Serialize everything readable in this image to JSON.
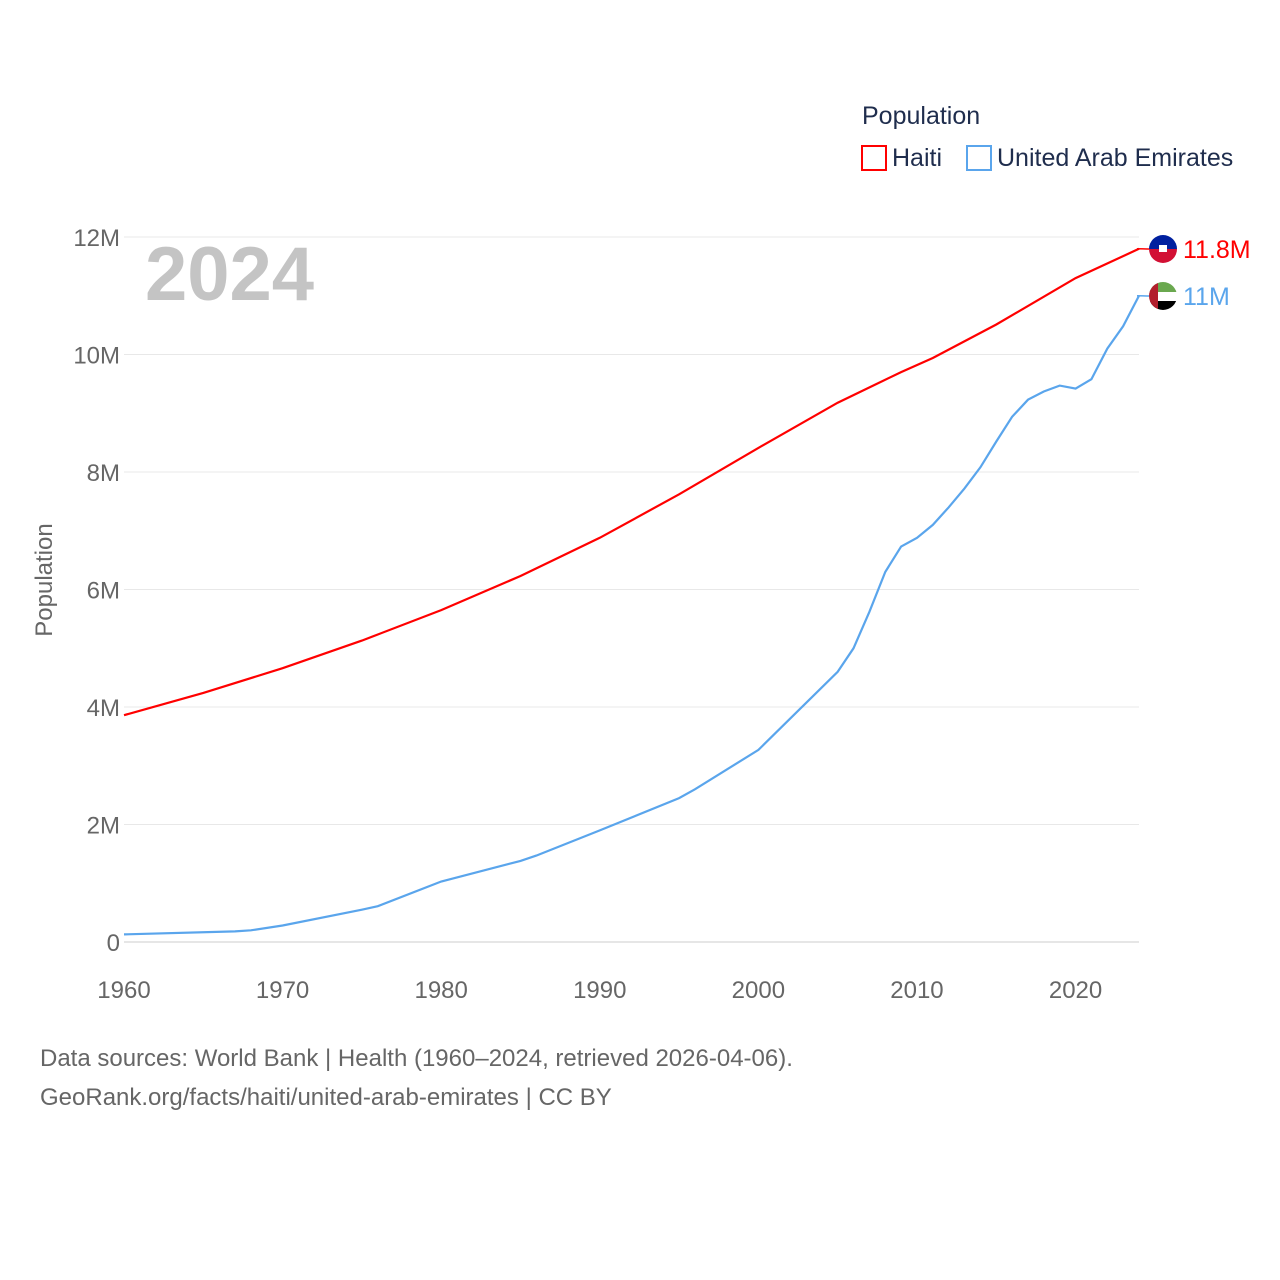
{
  "chart_data": {
    "type": "line",
    "title": "",
    "year_label": "2024",
    "ylabel": "Population",
    "xlabel": "",
    "xlim": [
      1960,
      2024
    ],
    "ylim": [
      0,
      12000000
    ],
    "x_ticks": [
      "1960",
      "1970",
      "1980",
      "1990",
      "2000",
      "2010",
      "2020"
    ],
    "y_ticks": [
      {
        "value": 0,
        "label": "0"
      },
      {
        "value": 2000000,
        "label": "2M"
      },
      {
        "value": 4000000,
        "label": "4M"
      },
      {
        "value": 6000000,
        "label": "6M"
      },
      {
        "value": 8000000,
        "label": "8M"
      },
      {
        "value": 10000000,
        "label": "10M"
      },
      {
        "value": 12000000,
        "label": "12M"
      }
    ],
    "grid": true,
    "legend": {
      "title": "Population",
      "placement": "top-right"
    },
    "series": [
      {
        "name": "Haiti",
        "color": "#ff0000",
        "end_label": "11.8M",
        "x": [
          1960,
          1965,
          1970,
          1975,
          1980,
          1985,
          1990,
          1995,
          2000,
          2005,
          2009,
          2011,
          2015,
          2020,
          2024
        ],
        "values": [
          3860000,
          4240000,
          4660000,
          5130000,
          5650000,
          6230000,
          6880000,
          7620000,
          8410000,
          9180000,
          9700000,
          9940000,
          10510000,
          11300000,
          11800000
        ]
      },
      {
        "name": "United Arab Emirates",
        "color": "#5aa5ec",
        "end_label": "11M",
        "x": [
          1960,
          1967,
          1968,
          1970,
          1975,
          1976,
          1980,
          1981,
          1985,
          1986,
          1990,
          1995,
          1996,
          2000,
          2005,
          2006,
          2007,
          2008,
          2009,
          2010,
          2011,
          2012,
          2013,
          2014,
          2015,
          2016,
          2017,
          2018,
          2019,
          2020,
          2021,
          2022,
          2023,
          2024
        ],
        "values": [
          130000,
          180000,
          200000,
          280000,
          550000,
          610000,
          1030000,
          1100000,
          1380000,
          1470000,
          1900000,
          2450000,
          2600000,
          3270000,
          4600000,
          5000000,
          5620000,
          6300000,
          6730000,
          6880000,
          7100000,
          7400000,
          7720000,
          8080000,
          8520000,
          8940000,
          9230000,
          9370000,
          9470000,
          9420000,
          9580000,
          10100000,
          10480000,
          11000000
        ]
      }
    ]
  },
  "footer": {
    "line1": "Data sources: World Bank | Health (1960–2024, retrieved 2026-04-06).",
    "line2": "GeoRank.org/facts/haiti/united-arab-emirates | CC BY"
  }
}
